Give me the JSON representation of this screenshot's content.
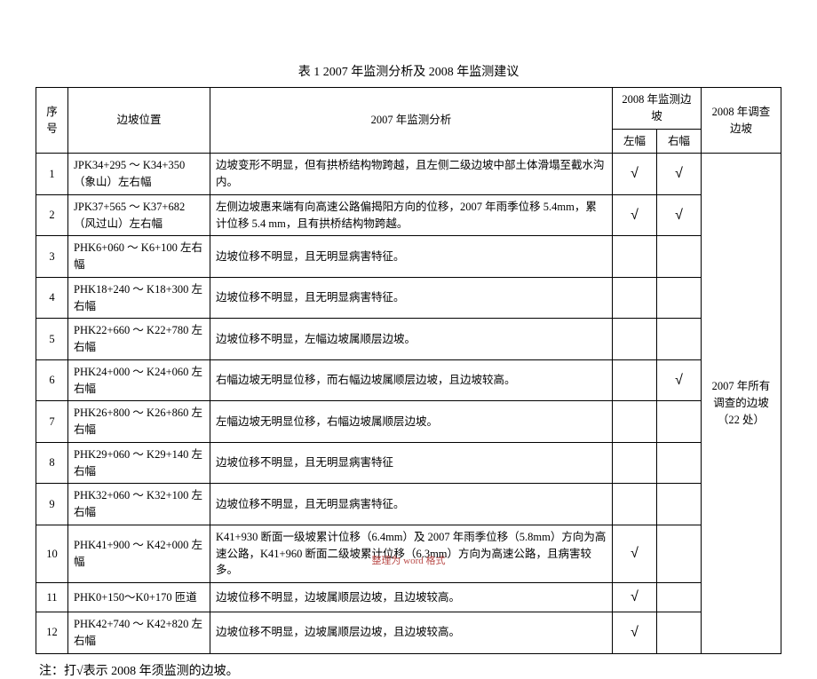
{
  "title": "表 1   2007 年监测分析及 2008 年监测建议",
  "colors": {
    "text": "#000000",
    "border": "#000000",
    "bg": "#ffffff",
    "footer": "#b94a48"
  },
  "font": {
    "family": "SimSun",
    "base_size": 13,
    "title_size": 14,
    "cell_size": 12.5,
    "footer_size": 11
  },
  "table": {
    "header": {
      "idx": "序号",
      "location": "边坡位置",
      "analysis": "2007 年监测分析",
      "slope2008": "2008 年监测边坡",
      "left": "左幅",
      "right": "右幅",
      "investigate": "2008 年调查边坡"
    },
    "investigate_text": "2007 年所有调查的边坡（22 处）",
    "rows": [
      {
        "n": "1",
        "loc": "JPK34+295 ～ K34+350（象山）左右幅",
        "ana": "边坡变形不明显，但有拱桥结构物跨越，且左侧二级边坡中部土体滑塌至截水沟内。",
        "lf": "√",
        "rf": "√"
      },
      {
        "n": "2",
        "loc": "JPK37+565 ～ K37+682（风过山）左右幅",
        "ana": "左侧边坡惠来端有向高速公路偏揭阳方向的位移，2007 年雨季位移 5.4mm，累计位移 5.4 mm，且有拱桥结构物跨越。",
        "lf": "√",
        "rf": "√"
      },
      {
        "n": "3",
        "loc": "PHK6+060 ～ K6+100 左右幅",
        "ana": "边坡位移不明显，且无明显病害特征。",
        "lf": "",
        "rf": ""
      },
      {
        "n": "4",
        "loc": "PHK18+240 ～ K18+300 左右幅",
        "ana": "边坡位移不明显，且无明显病害特征。",
        "lf": "",
        "rf": ""
      },
      {
        "n": "5",
        "loc": "PHK22+660 ～ K22+780 左右幅",
        "ana": "边坡位移不明显，左幅边坡属顺层边坡。",
        "lf": "",
        "rf": ""
      },
      {
        "n": "6",
        "loc": "PHK24+000 ～ K24+060 左右幅",
        "ana": "右幅边坡无明显位移，而右幅边坡属顺层边坡，且边坡较高。",
        "lf": "",
        "rf": "√"
      },
      {
        "n": "7",
        "loc": "PHK26+800 ～ K26+860 左右幅",
        "ana": "左幅边坡无明显位移，右幅边坡属顺层边坡。",
        "lf": "",
        "rf": ""
      },
      {
        "n": "8",
        "loc": "PHK29+060 ～ K29+140 左右幅",
        "ana": "边坡位移不明显，且无明显病害特征",
        "lf": "",
        "rf": ""
      },
      {
        "n": "9",
        "loc": "PHK32+060 ～ K32+100 左右幅",
        "ana": "边坡位移不明显，且无明显病害特征。",
        "lf": "",
        "rf": ""
      },
      {
        "n": "10",
        "loc": "PHK41+900 ～ K42+000 左幅",
        "ana": "K41+930 断面一级坡累计位移（6.4mm）及 2007 年雨季位移（5.8mm）方向为高速公路，K41+960 断面二级坡累计位移（6.3mm）方向为高速公路，且病害较多。",
        "lf": "√",
        "rf": ""
      },
      {
        "n": "11",
        "loc": "PHK0+150～K0+170 匝道",
        "ana": "边坡位移不明显，边坡属顺层边坡，且边坡较高。",
        "lf": "√",
        "rf": ""
      },
      {
        "n": "12",
        "loc": "PHK42+740 ～ K42+820 左右幅",
        "ana": "边坡位移不明显，边坡属顺层边坡，且边坡较高。",
        "lf": "√",
        "rf": ""
      }
    ],
    "col_widths": {
      "idx": 36,
      "loc": 160,
      "lf": 50,
      "rf": 50,
      "inv": 90
    }
  },
  "footnote": "注：打√表示 2008 年须监测的边坡。",
  "footer": "整理为 word 格式"
}
